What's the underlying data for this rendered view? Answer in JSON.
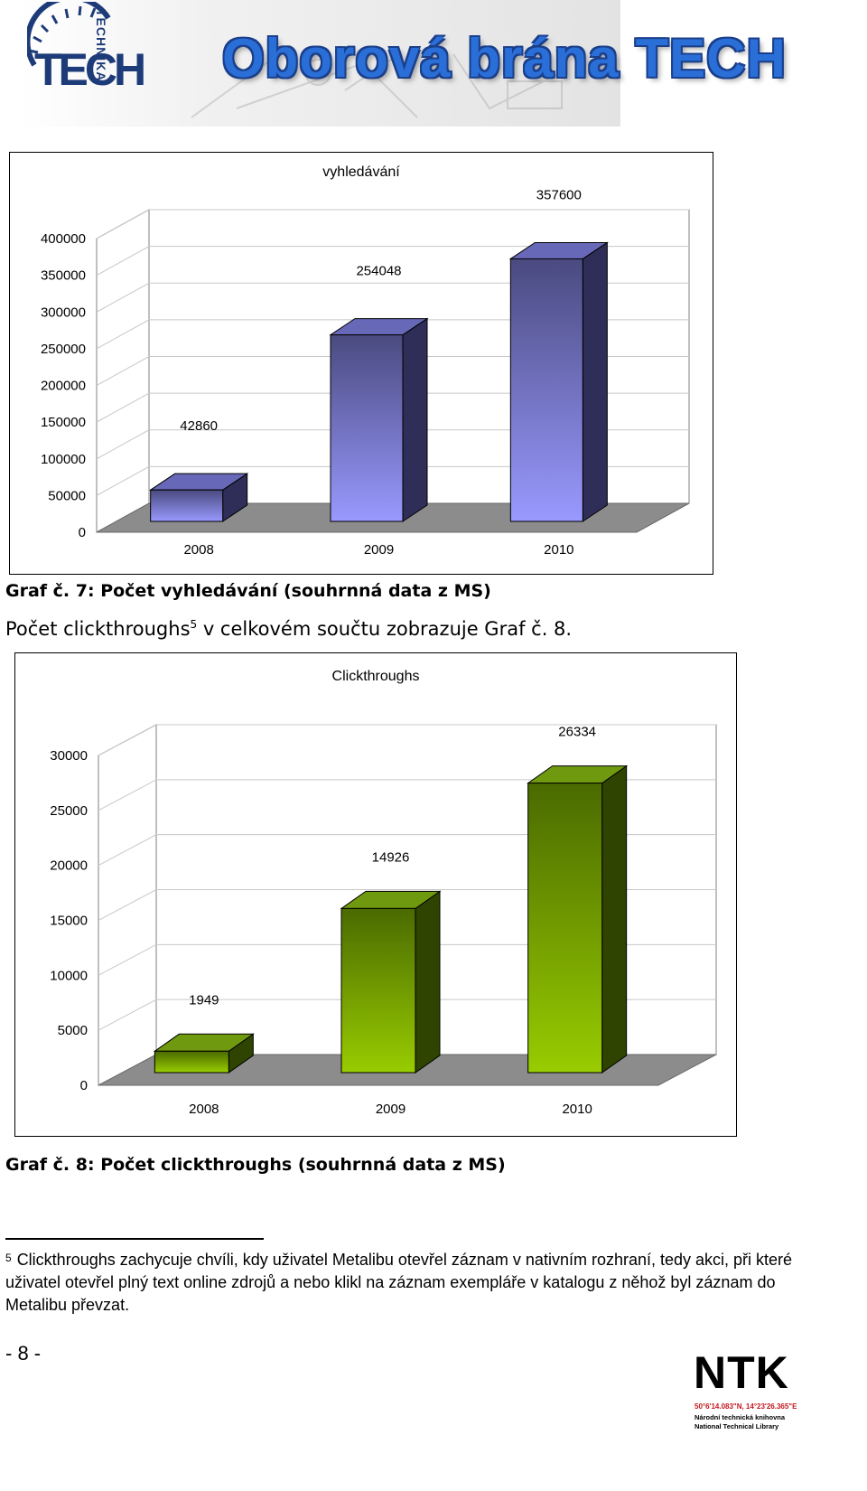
{
  "header": {
    "logo_text": "TECH",
    "logo_arc_text": "TECHNIKA",
    "title": "Oborová brána TECH"
  },
  "body_text": {
    "before": "Počet clickthroughs",
    "sup": "5",
    "after": " v celkovém součtu zobrazuje Graf č. 8."
  },
  "captions": {
    "graf7": "Graf č. 7: Počet vyhledávání (souhrnná data z MS)",
    "graf8": "Graf č. 8: Počet clickthroughs (souhrnná data z MS)"
  },
  "footnote": {
    "number": "5",
    "text": "Clickthroughs zachycuje chvíli, kdy uživatel Metalibu otevřel záznam v nativním rozhraní, tedy akci, při které uživatel otevřel plný text online zdrojů a nebo klikl na záznam exempláře v katalogu z něhož byl záznam do Metalibu převzat."
  },
  "page_number": "- 8 -",
  "ntk": {
    "letters": "NTK",
    "coords": "50°6'14.083\"N, 14°23'26.365\"E",
    "line1": "Národní technická knihovna",
    "line2": "National Technical Library"
  },
  "colors": {
    "brand_blue": "#1e3b79",
    "title_blue": "#2a6fd8",
    "ntk_red": "#c4161c"
  },
  "chart_data": [
    {
      "type": "bar",
      "title": "vyhledávání",
      "categories": [
        "2008",
        "2009",
        "2010"
      ],
      "values": [
        42860,
        254048,
        357600
      ],
      "data_labels": [
        "42860",
        "254048",
        "357600"
      ],
      "ylim": [
        0,
        400000
      ],
      "yticks": [
        0,
        50000,
        100000,
        150000,
        200000,
        250000,
        300000,
        350000,
        400000
      ],
      "grid": true,
      "three_d": true,
      "colors": {
        "front_top": "#4a4a80",
        "front_bottom": "#9999ff",
        "side": "#2e2e58",
        "top": "#6868b8"
      }
    },
    {
      "type": "bar",
      "title": "Clickthroughs",
      "categories": [
        "2008",
        "2009",
        "2010"
      ],
      "values": [
        1949,
        14926,
        26334
      ],
      "data_labels": [
        "1949",
        "14926",
        "26334"
      ],
      "ylim": [
        0,
        30000
      ],
      "yticks": [
        0,
        5000,
        10000,
        15000,
        20000,
        25000,
        30000
      ],
      "grid": true,
      "three_d": true,
      "colors": {
        "front_top": "#4a6a00",
        "front_bottom": "#99cc00",
        "side": "#2f4400",
        "top": "#6f9a10"
      }
    }
  ]
}
